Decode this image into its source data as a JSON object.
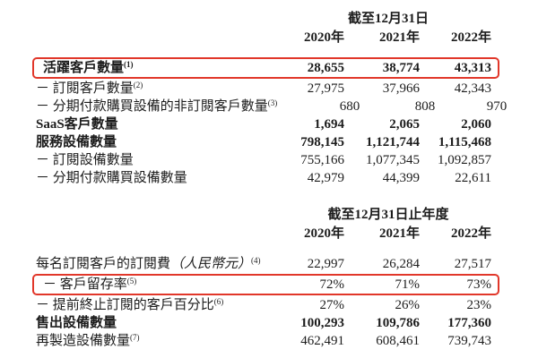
{
  "colors": {
    "accent_red": "#e1372a",
    "text": "#1c1c1c",
    "background": "#ffffff"
  },
  "table1": {
    "period_header": "截至12月31日",
    "years": [
      "2020年",
      "2021年",
      "2022年"
    ],
    "rows": [
      {
        "label": "活躍客戶數量",
        "note": "(1)",
        "values": [
          "28,655",
          "38,774",
          "43,313"
        ]
      },
      {
        "label": "－ 訂閱客戶數量",
        "note": "(2)",
        "values": [
          "27,975",
          "37,966",
          "42,343"
        ]
      },
      {
        "label": "－ 分期付款購買設備的非訂閱客戶數量",
        "note": "(3)",
        "values": [
          "680",
          "808",
          "970"
        ]
      },
      {
        "label": "SaaS客戶數量",
        "note": "",
        "values": [
          "1,694",
          "2,065",
          "2,060"
        ]
      },
      {
        "label": "服務設備數量",
        "note": "",
        "values": [
          "798,145",
          "1,121,744",
          "1,115,468"
        ]
      },
      {
        "label": "－ 訂閱設備數量",
        "note": "",
        "values": [
          "755,166",
          "1,077,345",
          "1,092,857"
        ]
      },
      {
        "label": "－ 分期付款購買設備數量",
        "note": "",
        "values": [
          "42,979",
          "44,399",
          "22,611"
        ]
      }
    ]
  },
  "table2": {
    "period_header": "截至12月31日止年度",
    "years": [
      "2020年",
      "2021年",
      "2022年"
    ],
    "rows": [
      {
        "label": "每名訂閱客戶的訂閱費",
        "label_italic": "（人民幣元）",
        "note": "(4)",
        "values": [
          "22,997",
          "26,284",
          "27,517"
        ]
      },
      {
        "label": "－ 客戶留存率",
        "note": "(5)",
        "values": [
          "72%",
          "71%",
          "73%"
        ]
      },
      {
        "label": "－ 提前終止訂閱的客戶百分比",
        "note": "(6)",
        "values": [
          "27%",
          "26%",
          "23%"
        ]
      },
      {
        "label": "售出設備數量",
        "note": "",
        "values": [
          "100,293",
          "109,786",
          "177,360"
        ]
      },
      {
        "label": "再製造設備數量",
        "note": "(7)",
        "values": [
          "462,491",
          "608,461",
          "739,743"
        ]
      }
    ]
  }
}
